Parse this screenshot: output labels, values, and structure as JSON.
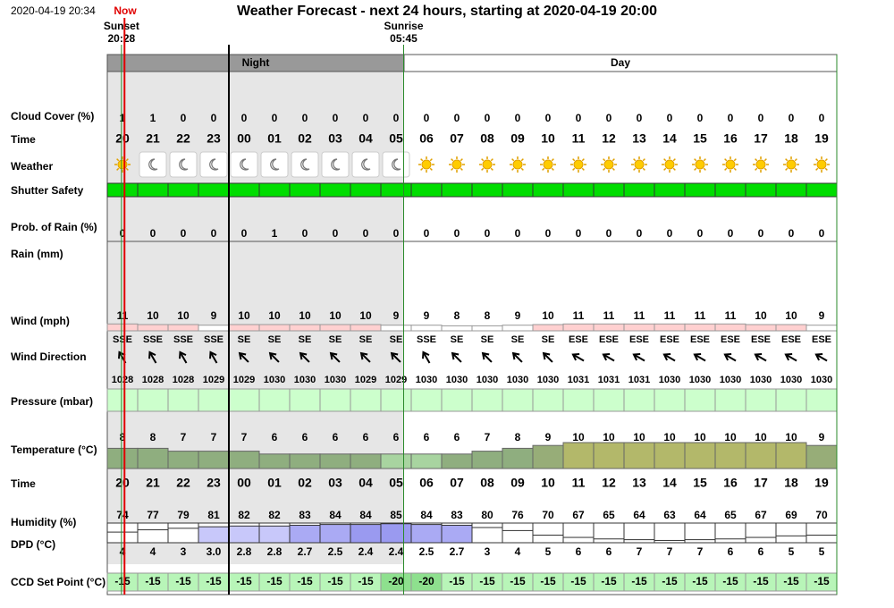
{
  "header": {
    "timestamp": "2020-04-19 20:34",
    "now": "Now",
    "title": "Weather Forecast - next 24 hours, starting at 2020-04-19 20:00"
  },
  "sunset": {
    "label": "Sunset",
    "time": "20:28"
  },
  "sunrise": {
    "label": "Sunrise",
    "time": "05:45"
  },
  "periods": {
    "night": "Night",
    "day": "Day"
  },
  "row_labels": {
    "cloud_cover": "Cloud Cover (%)",
    "time": "Time",
    "weather": "Weather",
    "shutter_safety": "Shutter Safety",
    "rain_probability": "Prob. of Rain (%)",
    "rain": "Rain (mm)",
    "wind_speed": "Wind (mph)",
    "wind_direction": "Wind Direction",
    "pressure": "Pressure (mbar)",
    "temperature": "Temperature (°C)",
    "time2": "Time",
    "humidity": "Humidity (%)",
    "dpd": "DPD (°C)",
    "ccd_set_point": "CCD Set Point (°C)"
  },
  "hours": [
    "20",
    "21",
    "22",
    "23",
    "00",
    "01",
    "02",
    "03",
    "04",
    "05",
    "06",
    "07",
    "08",
    "09",
    "10",
    "11",
    "12",
    "13",
    "14",
    "15",
    "16",
    "17",
    "18",
    "19"
  ],
  "cloud_cover": [
    1,
    1,
    0,
    0,
    0,
    0,
    0,
    0,
    0,
    0,
    0,
    0,
    0,
    0,
    0,
    0,
    0,
    0,
    0,
    0,
    0,
    0,
    0,
    0
  ],
  "rain_probability": [
    0,
    0,
    0,
    0,
    0,
    1,
    0,
    0,
    0,
    0,
    0,
    0,
    0,
    0,
    0,
    0,
    0,
    0,
    0,
    0,
    0,
    0,
    0,
    0
  ],
  "wind_speed": [
    11,
    10,
    10,
    9,
    10,
    10,
    10,
    10,
    10,
    9,
    9,
    8,
    8,
    9,
    10,
    11,
    11,
    11,
    11,
    11,
    11,
    10,
    10,
    9
  ],
  "wind_direction": [
    "SSE",
    "SSE",
    "SSE",
    "SSE",
    "SE",
    "SE",
    "SE",
    "SE",
    "SE",
    "SE",
    "SSE",
    "SE",
    "SE",
    "SE",
    "SE",
    "ESE",
    "ESE",
    "ESE",
    "ESE",
    "ESE",
    "ESE",
    "ESE",
    "ESE",
    "ESE"
  ],
  "pressure": [
    1028,
    1028,
    1028,
    1029,
    1029,
    1030,
    1030,
    1030,
    1029,
    1029,
    1030,
    1030,
    1030,
    1030,
    1030,
    1031,
    1031,
    1031,
    1030,
    1030,
    1030,
    1030,
    1030,
    1030
  ],
  "temperature": [
    8,
    8,
    7,
    7,
    7,
    6,
    6,
    6,
    6,
    6,
    6,
    6,
    7,
    8,
    9,
    10,
    10,
    10,
    10,
    10,
    10,
    10,
    10,
    9
  ],
  "humidity": [
    74,
    77,
    79,
    81,
    82,
    82,
    83,
    84,
    84,
    85,
    84,
    83,
    80,
    76,
    70,
    67,
    65,
    64,
    63,
    64,
    65,
    67,
    69,
    70
  ],
  "dpd": {
    "values": [
      4,
      4,
      3,
      3,
      2.8,
      2.8,
      2.7,
      2.5,
      2.4,
      2.4,
      2.5,
      2.7,
      3,
      4,
      5,
      6,
      6,
      7,
      7,
      7,
      6,
      6,
      5,
      5
    ],
    "value_labels": [
      "4",
      "4",
      "3",
      "3.0",
      "2.8",
      "2.8",
      "2.7",
      "2.5",
      "2.4",
      "2.4",
      "2.5",
      "2.7",
      "3",
      "4",
      "5",
      "6",
      "6",
      "7",
      "7",
      "7",
      "6",
      "6",
      "5",
      "5"
    ]
  },
  "ccd_set_point": [
    -15,
    -15,
    -15,
    -15,
    -15,
    -15,
    -15,
    -15,
    -15,
    -20,
    -20,
    -15,
    -15,
    -15,
    -15,
    -15,
    -15,
    -15,
    -15,
    -15,
    -15,
    -15,
    -15,
    -15
  ]
}
